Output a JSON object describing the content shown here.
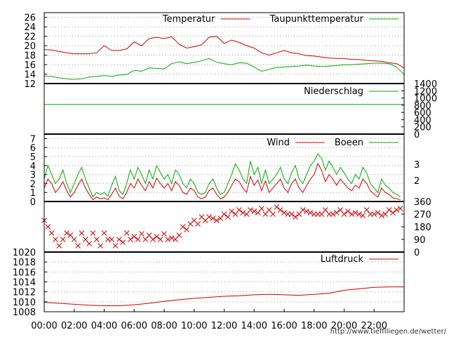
{
  "source_url": "http://www.tiefflliegen.de/wetter/",
  "x_ticks": [
    "00:00",
    "02:00",
    "04:00",
    "06:00",
    "08:00",
    "10:00",
    "12:00",
    "14:00",
    "16:00",
    "18:00",
    "20:00",
    "22:00"
  ],
  "colors": {
    "red": "#cc0000",
    "green": "#00aa00",
    "frame": "#000000",
    "grid": "#9a9a9a"
  },
  "chart_data": [
    {
      "type": "line",
      "x_hours": [
        0,
        0.5,
        1,
        1.5,
        2,
        2.5,
        3,
        3.5,
        4,
        4.5,
        5,
        5.5,
        6,
        6.5,
        7,
        7.5,
        8,
        8.5,
        9,
        9.5,
        10,
        10.5,
        11,
        11.5,
        12,
        12.5,
        13,
        13.5,
        14,
        14.5,
        15,
        15.5,
        16,
        16.5,
        17,
        17.5,
        18,
        18.5,
        19,
        19.5,
        20,
        20.5,
        21,
        21.5,
        22,
        22.5,
        23,
        23.5,
        24
      ],
      "series": [
        {
          "name": "Temperatur",
          "color": "#cc0000",
          "values": [
            19.2,
            19.1,
            18.8,
            18.5,
            18.3,
            18.3,
            18.3,
            18.5,
            20.0,
            19.0,
            19.0,
            19.3,
            20.8,
            20.0,
            21.5,
            21.8,
            21.5,
            21.9,
            20.3,
            19.5,
            19.8,
            20.2,
            21.8,
            22.0,
            20.5,
            21.2,
            20.7,
            20.0,
            19.5,
            18.5,
            18.0,
            18.5,
            19.0,
            18.5,
            18.3,
            17.9,
            17.8,
            17.6,
            17.4,
            17.3,
            17.3,
            17.1,
            17.1,
            16.9,
            16.8,
            16.7,
            16.4,
            16.2,
            15.3
          ]
        },
        {
          "name": "Taupunkttemperatur",
          "color": "#00aa00",
          "values": [
            13.6,
            13.5,
            13.2,
            13.0,
            12.9,
            13.0,
            13.4,
            13.5,
            13.7,
            13.5,
            13.8,
            13.9,
            14.8,
            14.6,
            15.3,
            15.2,
            15.1,
            16.2,
            16.6,
            16.2,
            16.5,
            16.8,
            17.3,
            16.5,
            16.2,
            16.0,
            16.4,
            16.3,
            15.5,
            14.6,
            15.0,
            15.4,
            15.5,
            15.6,
            15.7,
            15.9,
            15.7,
            15.6,
            15.7,
            15.8,
            16.0,
            16.0,
            16.1,
            16.2,
            16.3,
            16.3,
            16.2,
            15.5,
            13.9
          ]
        }
      ],
      "ylim": [
        12,
        27
      ],
      "yticks": [
        12,
        14,
        16,
        18,
        20,
        22,
        24,
        26
      ],
      "grid": true,
      "legend": "top-right"
    },
    {
      "type": "line",
      "series": [
        {
          "name": "Niederschlag",
          "color": "#00aa00",
          "values": [
            820,
            820
          ]
        }
      ],
      "x_hours": [
        0,
        24
      ],
      "ylim": [
        0,
        1400
      ],
      "yticks_right": [
        0,
        200,
        400,
        600,
        800,
        1000,
        1200,
        1400
      ],
      "legend": "top-right"
    },
    {
      "type": "line",
      "x_step_hours": 0.25,
      "series": [
        {
          "name": "Wind",
          "color": "#cc0000",
          "values": [
            1.5,
            2.5,
            2.0,
            1.0,
            1.5,
            2.2,
            1.2,
            0.5,
            1.0,
            1.8,
            2.5,
            1.5,
            0.8,
            0.2,
            0.5,
            0.3,
            0.4,
            0.2,
            0.8,
            1.5,
            0.6,
            0.3,
            1.0,
            2.0,
            1.5,
            2.5,
            1.8,
            1.2,
            2.2,
            1.5,
            2.6,
            2.0,
            1.5,
            2.0,
            1.2,
            2.2,
            1.8,
            1.0,
            0.8,
            1.5,
            1.2,
            0.5,
            0.3,
            0.5,
            1.2,
            1.5,
            0.8,
            0.3,
            0.5,
            1.0,
            1.8,
            2.5,
            2.2,
            1.5,
            1.0,
            2.8,
            1.8,
            2.4,
            1.2,
            2.3,
            1.0,
            1.5,
            2.0,
            2.5,
            1.5,
            1.0,
            2.0,
            2.5,
            1.5,
            1.0,
            1.8,
            2.5,
            3.0,
            4.2,
            3.5,
            2.2,
            3.0,
            2.5,
            1.8,
            2.5,
            2.0,
            1.5,
            1.2,
            1.8,
            1.5,
            2.5,
            2.0,
            1.2,
            0.8,
            0.5,
            1.5,
            1.0,
            0.8,
            0.4,
            0.3,
            0.2
          ]
        },
        {
          "name": "Boeen",
          "color": "#00aa00",
          "values": [
            2.5,
            4.0,
            3.0,
            2.0,
            2.5,
            3.5,
            2.0,
            1.0,
            2.0,
            3.0,
            3.8,
            2.5,
            1.5,
            0.5,
            1.0,
            0.8,
            1.0,
            0.6,
            1.8,
            2.8,
            1.2,
            0.8,
            2.0,
            3.5,
            2.5,
            3.8,
            3.0,
            2.0,
            3.5,
            2.5,
            4.0,
            3.2,
            2.5,
            3.0,
            2.0,
            3.5,
            3.0,
            2.0,
            1.5,
            2.5,
            2.0,
            1.0,
            0.8,
            1.0,
            2.0,
            2.5,
            1.5,
            0.8,
            1.0,
            2.0,
            3.0,
            4.2,
            3.5,
            2.5,
            2.0,
            4.5,
            3.0,
            3.8,
            2.0,
            3.5,
            2.0,
            2.5,
            3.0,
            3.8,
            2.5,
            2.0,
            3.2,
            4.0,
            2.5,
            2.0,
            3.0,
            4.0,
            4.5,
            5.3,
            4.8,
            3.5,
            4.5,
            3.8,
            3.0,
            3.8,
            3.2,
            2.5,
            2.0,
            3.0,
            2.5,
            3.8,
            3.2,
            2.0,
            1.5,
            1.0,
            2.5,
            1.8,
            1.5,
            1.0,
            0.8,
            0.5
          ]
        }
      ],
      "ylim": [
        0,
        7.5
      ],
      "yticks": [
        0,
        1,
        2,
        3,
        4,
        5,
        6,
        7
      ],
      "yticks_right": [
        "2",
        "3"
      ],
      "grid": true,
      "legend": "top-right"
    },
    {
      "type": "scatter",
      "marker": "x",
      "color": "#cc0000",
      "x_step_hours": 0.25,
      "values": [
        225,
        180,
        135,
        90,
        45,
        90,
        135,
        120,
        90,
        45,
        135,
        90,
        60,
        135,
        90,
        45,
        135,
        90,
        90,
        45,
        90,
        70,
        135,
        90,
        110,
        90,
        130,
        90,
        120,
        90,
        110,
        90,
        130,
        90,
        100,
        90,
        120,
        180,
        160,
        200,
        225,
        200,
        250,
        225,
        250,
        240,
        225,
        240,
        270,
        250,
        290,
        270,
        300,
        280,
        270,
        300,
        290,
        280,
        310,
        270,
        300,
        270,
        320,
        300,
        280,
        270,
        270,
        250,
        270,
        300,
        290,
        280,
        270,
        270,
        270,
        300,
        270,
        270,
        280,
        300,
        270,
        290,
        270,
        280,
        270,
        260,
        300,
        270,
        270,
        280,
        260,
        270,
        300,
        280,
        300,
        310
      ],
      "ylim": [
        0,
        360
      ],
      "yticks_right": [
        0,
        90,
        180,
        270,
        360
      ]
    },
    {
      "type": "line",
      "x_hours": [
        0,
        1,
        2,
        3,
        4,
        5,
        6,
        7,
        8,
        9,
        10,
        11,
        12,
        13,
        14,
        15,
        16,
        17,
        18,
        19,
        20,
        21,
        22,
        23,
        24
      ],
      "series": [
        {
          "name": "Luftdruck",
          "color": "#cc0000",
          "values": [
            1009.9,
            1009.7,
            1009.5,
            1009.3,
            1009.2,
            1009.2,
            1009.4,
            1009.7,
            1010.1,
            1010.4,
            1010.7,
            1010.9,
            1011.1,
            1011.2,
            1011.4,
            1011.5,
            1011.4,
            1011.3,
            1011.5,
            1011.7,
            1012.3,
            1012.6,
            1012.9,
            1013.0,
            1013.0
          ]
        }
      ],
      "ylim": [
        1008,
        1020
      ],
      "yticks": [
        1008,
        1010,
        1012,
        1014,
        1016,
        1018,
        1020
      ],
      "grid": true,
      "legend": "top-right"
    }
  ]
}
